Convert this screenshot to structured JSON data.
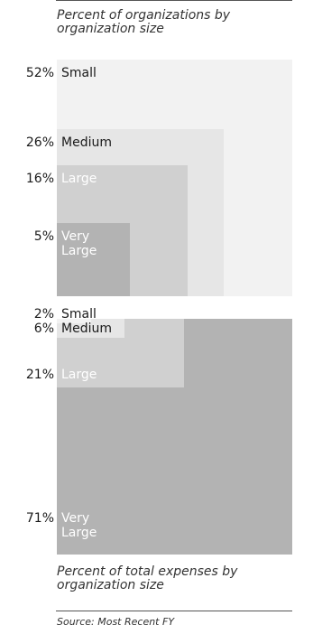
{
  "top_caption": "Percent of organizations by organization size",
  "bottom_caption": "Percent of total expenses by organization size",
  "source": "Source: Most Recent FY",
  "chart_data": [
    {
      "type": "area",
      "title": "Percent of organizations by organization size",
      "categories": [
        "Small",
        "Medium",
        "Large",
        "Very Large"
      ],
      "values": [
        52,
        26,
        16,
        5
      ],
      "value_labels": [
        "52%",
        "26%",
        "16%",
        "5%"
      ],
      "label_text": [
        "Small",
        "Medium",
        "Large",
        "Very\nLarge"
      ],
      "colors": [
        "#f2f2f2",
        "#e6e6e6",
        "#d0d0d0",
        "#b3b3b3"
      ],
      "label_colors": [
        "#1a1a1a",
        "#1a1a1a",
        "#ffffff",
        "#ffffff"
      ]
    },
    {
      "type": "area",
      "title": "Percent of total expenses by organization size",
      "categories": [
        "Small",
        "Medium",
        "Large",
        "Very Large"
      ],
      "values": [
        2,
        6,
        21,
        71
      ],
      "value_labels": [
        "2%",
        "6%",
        "21%",
        "71%"
      ],
      "label_text": [
        "Small",
        "Medium",
        "Large",
        "Very\nLarge"
      ],
      "colors": [
        "#f2f2f2",
        "#e6e6e6",
        "#d0d0d0",
        "#b3b3b3"
      ],
      "label_colors": [
        "#1a1a1a",
        "#1a1a1a",
        "#ffffff",
        "#ffffff"
      ]
    }
  ]
}
